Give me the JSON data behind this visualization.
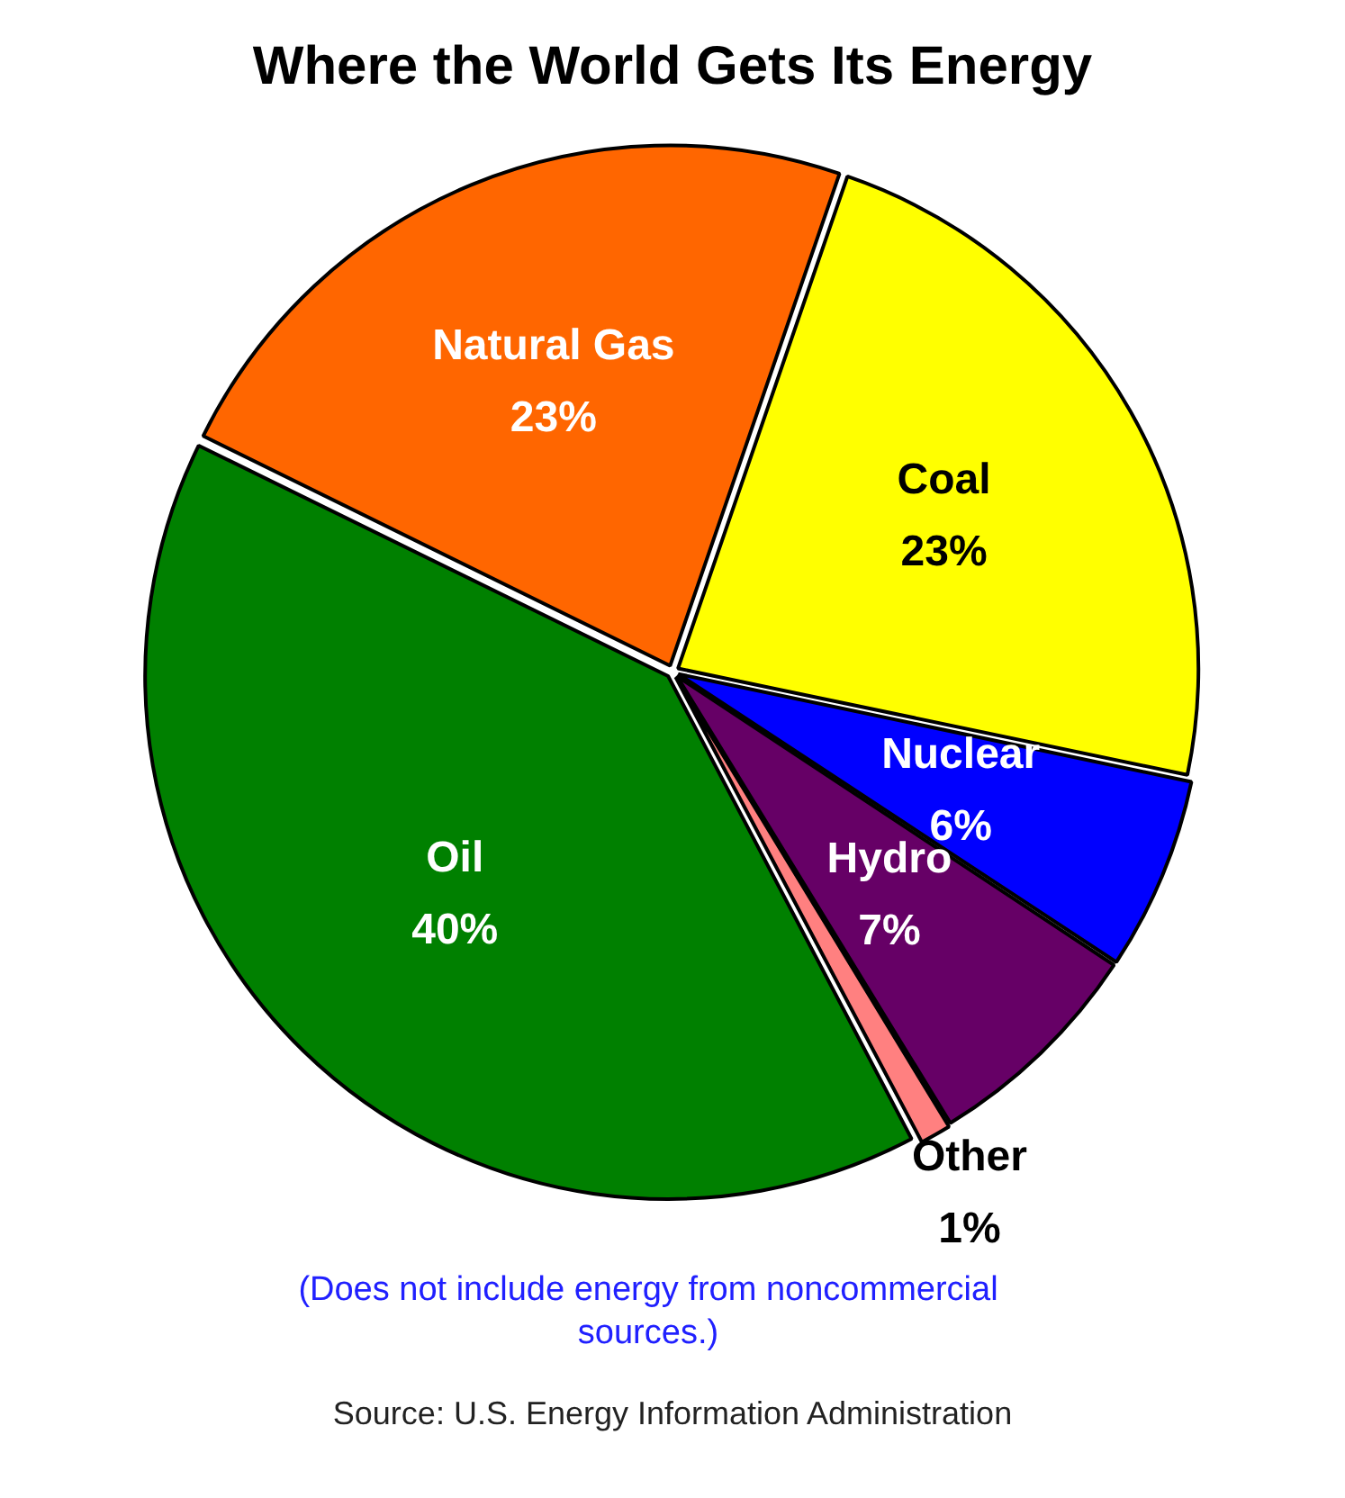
{
  "chart_data": {
    "type": "pie",
    "title": "Where the World Gets Its Energy",
    "categories": [
      "Coal",
      "Nuclear",
      "Hydro",
      "Other",
      "Oil",
      "Natural Gas"
    ],
    "values": [
      23,
      6,
      7,
      1,
      40,
      23
    ],
    "colors": [
      "#ffff00",
      "#0000ff",
      "#660066",
      "#ff8080",
      "#008000",
      "#ff6600"
    ],
    "value_labels": [
      "23%",
      "6%",
      "7%",
      "1%",
      "40%",
      "23%"
    ],
    "legend": false,
    "annotations": [
      "(Does not include energy from noncommercial sources.)",
      "Source: U.S. Energy Information Administration"
    ]
  }
}
